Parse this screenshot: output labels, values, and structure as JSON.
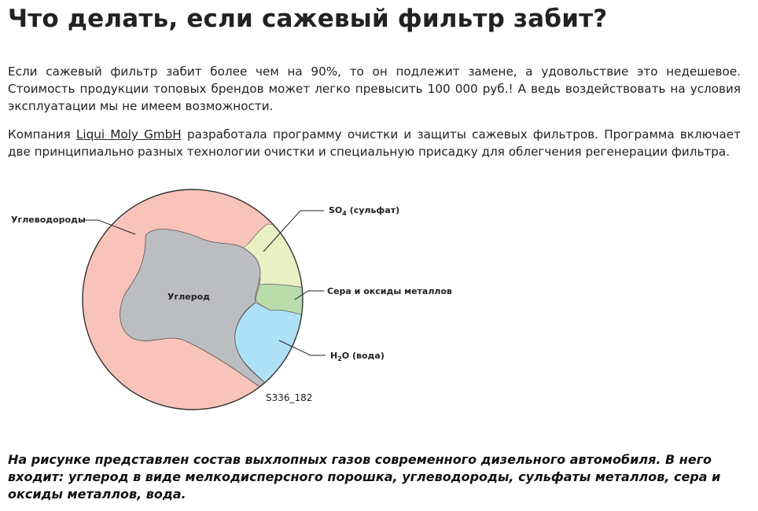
{
  "header": {
    "title": "Что делать, если сажевый фильтр забит?"
  },
  "paragraphs": [
    {
      "text": "Если сажевый фильтр забит более чем на 90%, то он подлежит замене, а удовольствие это недешевое. Стоимость продукции топовых брендов может легко превысить 100 000 руб.! А ведь воздействовать на условия эксплуатации мы не имеем возможности."
    },
    {
      "before": "Компания ",
      "link": "Liqui Moly GmbH",
      "after": "  разработала программу очистки и защиты сажевых фильтров. Программа включает две принципиально разных технологии очистки и специальную присадку для облегчения регенерации фильтра."
    }
  ],
  "diagram": {
    "labels": {
      "hydrocarbons": "Углеводороды",
      "carbon": "Углерод",
      "sulfate": {
        "main": "SO",
        "sub": "4",
        "rest": " (сульфат)"
      },
      "sulfur": "Сера и оксиды металлов",
      "water": {
        "main": "H",
        "sub": "2",
        "rest": "O (вода)"
      }
    },
    "code": "S336_182"
  },
  "caption": "На рисунке представлен состав выхлопных газов современного дизельного автомобиля. В него входит: углерод в виде мелкодисперсного порошка, углеводороды, сульфаты металлов, сера и оксиды металлов, вода."
}
